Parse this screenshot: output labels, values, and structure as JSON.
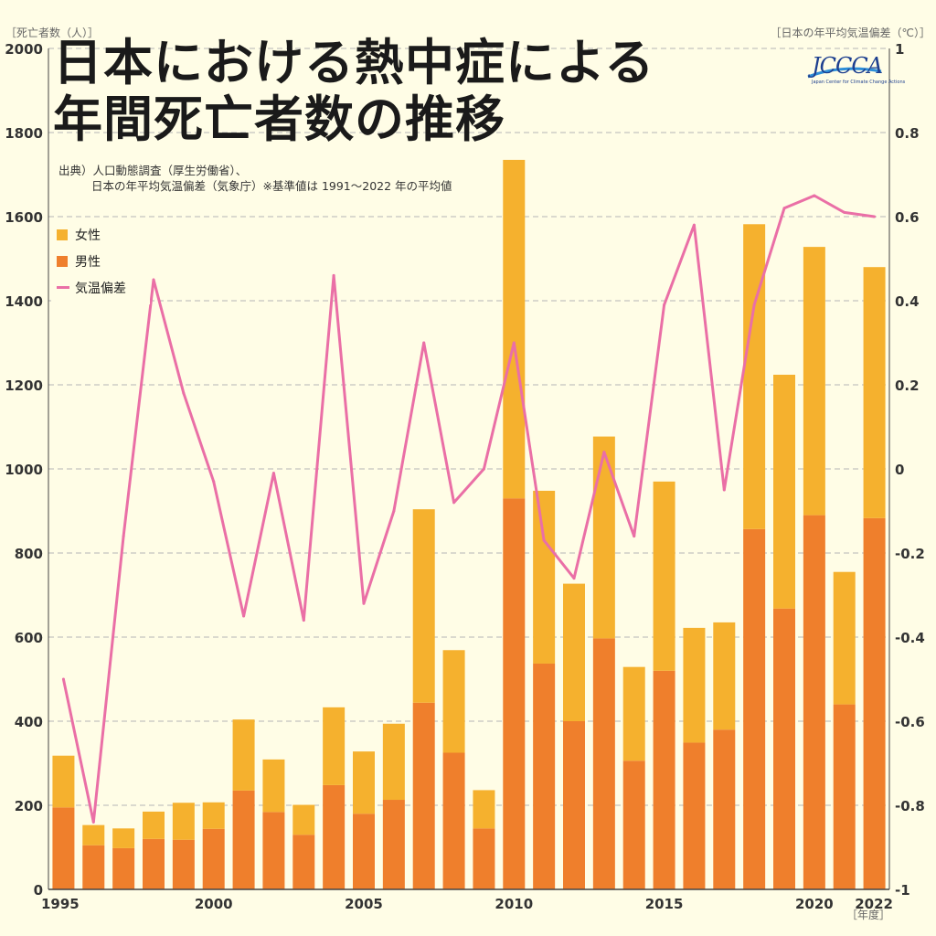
{
  "title_line1": "日本における熱中症による",
  "title_line2": "年間死亡者数の推移",
  "source_line1": "出典）人口動態調査（厚生労働省）、",
  "source_line2": "日本の年平均気温偏差（気象庁）※基準値は 1991～2022 年の平均値",
  "logo": {
    "name": "JCCCA",
    "subtitle": "Japan Center for Climate Change Actions"
  },
  "colors": {
    "female": "#f5b12e",
    "male": "#ef7f2c",
    "temp": "#ea6fa6",
    "background": "#fffde6",
    "grid": "#b5b5b5"
  },
  "chart_data": {
    "type": "bar",
    "stacked": true,
    "xlabel": "［年度］",
    "ylabel": "［死亡者数（人）］",
    "y2label": "［日本の年平均気温偏差（℃）］",
    "ylim": [
      0,
      2000
    ],
    "y2lim": [
      -1,
      1
    ],
    "yticks": [
      0,
      200,
      400,
      600,
      800,
      1000,
      1200,
      1400,
      1600,
      1800,
      2000
    ],
    "y2ticks": [
      -1,
      -0.8,
      -0.6,
      -0.4,
      -0.2,
      0,
      0.2,
      0.4,
      0.6,
      0.8,
      1
    ],
    "xtick_labels": [
      "1995",
      "2000",
      "2005",
      "2010",
      "2015",
      "2020",
      "2022"
    ],
    "grid": true,
    "legend_position": "top-left",
    "categories": [
      1995,
      1996,
      1997,
      1998,
      1999,
      2000,
      2001,
      2002,
      2003,
      2004,
      2005,
      2006,
      2007,
      2008,
      2009,
      2010,
      2011,
      2012,
      2013,
      2014,
      2015,
      2016,
      2017,
      2018,
      2019,
      2020,
      2021,
      2022
    ],
    "series": [
      {
        "name": "男性",
        "axis": "left",
        "kind": "bar",
        "values": [
          195,
          105,
          98,
          120,
          118,
          144,
          235,
          184,
          130,
          248,
          180,
          213,
          444,
          325,
          145,
          930,
          537,
          400,
          597,
          306,
          520,
          349,
          380,
          857,
          668,
          890,
          440,
          883
        ]
      },
      {
        "name": "女性",
        "axis": "left",
        "kind": "bar",
        "values": [
          123,
          48,
          47,
          65,
          88,
          63,
          169,
          125,
          71,
          185,
          148,
          181,
          460,
          244,
          91,
          805,
          411,
          327,
          480,
          223,
          450,
          273,
          255,
          725,
          556,
          638,
          315,
          597
        ]
      },
      {
        "name": "気温偏差",
        "axis": "right",
        "kind": "line",
        "values": [
          -0.5,
          -0.84,
          -0.16,
          0.45,
          0.18,
          -0.03,
          -0.35,
          -0.01,
          -0.36,
          0.46,
          -0.32,
          -0.1,
          0.3,
          -0.08,
          0.0,
          0.3,
          -0.17,
          -0.26,
          0.04,
          -0.16,
          0.39,
          0.58,
          -0.05,
          0.39,
          0.62,
          0.65,
          0.61,
          0.6
        ]
      }
    ]
  }
}
